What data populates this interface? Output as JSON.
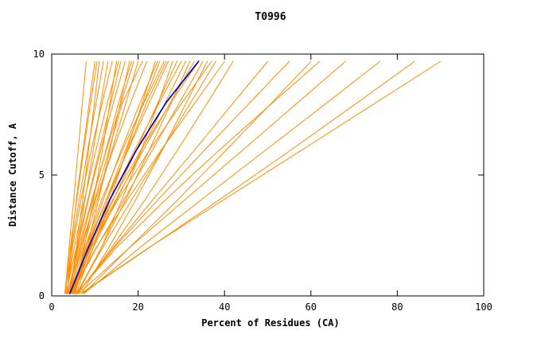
{
  "chart_data": {
    "type": "line",
    "title": "T0996",
    "xlabel": "Percent of Residues (CA)",
    "ylabel": "Distance Cutoff, A",
    "xlim": [
      0,
      100
    ],
    "ylim": [
      0,
      10
    ],
    "xticks": [
      0,
      20,
      40,
      60,
      80,
      100
    ],
    "yticks": [
      0,
      5,
      10
    ],
    "grid": false,
    "legend": "none",
    "line_color": "#ff8c00",
    "highlight_color": "#0000cd",
    "axis_color": "#000000",
    "y_anchors": [
      0.1,
      2,
      4,
      6,
      8,
      9.7
    ],
    "highlight": [
      4.2,
      8.5,
      13.5,
      19.5,
      26.5,
      34.0
    ],
    "series": [
      [
        3.1,
        4.0,
        5.1,
        6.1,
        7.1,
        8.0
      ],
      [
        3.6,
        4.5,
        5.7,
        7.2,
        8.7,
        10.0
      ],
      [
        4.2,
        5.7,
        7.2,
        8.5,
        9.9,
        11.0
      ],
      [
        3.1,
        4.6,
        6.4,
        8.3,
        10.3,
        12.0
      ],
      [
        4.2,
        5.9,
        7.7,
        9.6,
        11.4,
        13.0
      ],
      [
        3.6,
        4.8,
        6.8,
        9.1,
        11.7,
        14.0
      ],
      [
        5.0,
        7.5,
        9.7,
        11.7,
        13.5,
        15.0
      ],
      [
        3.3,
        5.7,
        8.4,
        11.0,
        13.7,
        16.0
      ],
      [
        4.1,
        6.0,
        8.5,
        11.3,
        14.3,
        17.0
      ],
      [
        5.4,
        8.1,
        10.9,
        13.4,
        15.9,
        18.0
      ],
      [
        3.7,
        6.2,
        9.3,
        12.6,
        16.1,
        19.0
      ],
      [
        4.3,
        7.3,
        10.6,
        13.9,
        17.2,
        20.0
      ],
      [
        4.2,
        6.7,
        10.2,
        14.1,
        18.3,
        22.0
      ],
      [
        5.6,
        9.6,
        13.6,
        17.3,
        21.0,
        24.0
      ],
      [
        4.4,
        8.3,
        12.7,
        17.0,
        21.3,
        25.0
      ],
      [
        5.1,
        7.7,
        11.6,
        16.3,
        21.4,
        26.0
      ],
      [
        4.3,
        8.0,
        12.7,
        17.6,
        22.6,
        27.0
      ],
      [
        6.0,
        11.5,
        16.3,
        20.7,
        24.7,
        28.0
      ],
      [
        4.5,
        9.2,
        14.3,
        19.5,
        24.6,
        29.0
      ],
      [
        5.3,
        8.8,
        13.6,
        19.1,
        24.9,
        30.0
      ],
      [
        4.6,
        9.6,
        15.1,
        20.7,
        26.3,
        31.0
      ],
      [
        5.8,
        11.5,
        17.2,
        22.5,
        27.7,
        32.0
      ],
      [
        4.4,
        9.1,
        14.9,
        21.1,
        27.5,
        33.0
      ],
      [
        5.2,
        8.7,
        14.2,
        20.5,
        27.6,
        34.0
      ],
      [
        4.7,
        10.4,
        16.8,
        23.2,
        29.6,
        35.0
      ],
      [
        6.9,
        13.2,
        19.5,
        25.5,
        31.2,
        36.0
      ],
      [
        4.3,
        9.0,
        15.4,
        22.5,
        30.2,
        37.0
      ],
      [
        5.7,
        11.8,
        18.6,
        25.4,
        32.2,
        38.0
      ],
      [
        4.5,
        10.3,
        17.6,
        25.2,
        33.2,
        40.0
      ],
      [
        6.1,
        13.9,
        21.7,
        29.0,
        36.1,
        42.0
      ],
      [
        5.9,
        14.3,
        23.5,
        32.9,
        42.1,
        50.0
      ],
      [
        5.9,
        14.5,
        24.7,
        35.2,
        45.9,
        55.0
      ],
      [
        7.4,
        18.0,
        29.3,
        40.2,
        51.0,
        60.0
      ],
      [
        5.8,
        15.0,
        26.5,
        38.6,
        51.2,
        62.0
      ],
      [
        6.3,
        18.0,
        31.0,
        44.0,
        57.0,
        68.0
      ],
      [
        7.5,
        20.4,
        34.8,
        49.3,
        63.8,
        76.0
      ],
      [
        7.0,
        22.6,
        39.0,
        55.1,
        70.8,
        84.0
      ],
      [
        6.8,
        22.5,
        40.0,
        57.6,
        75.1,
        90.0
      ],
      [
        3.0,
        4.3,
        5.8,
        7.4,
        9.0,
        10.5
      ],
      [
        3.8,
        6.5,
        9.5,
        12.5,
        15.5,
        18.5
      ],
      [
        4.0,
        7.0,
        10.0,
        13.2,
        16.4,
        21.0
      ],
      [
        5.0,
        9.0,
        13.0,
        17.5,
        22.0,
        26.5
      ],
      [
        4.8,
        8.0,
        12.0,
        16.0,
        20.5,
        24.5
      ],
      [
        3.4,
        5.2,
        7.6,
        10.2,
        12.9,
        15.5
      ]
    ]
  }
}
